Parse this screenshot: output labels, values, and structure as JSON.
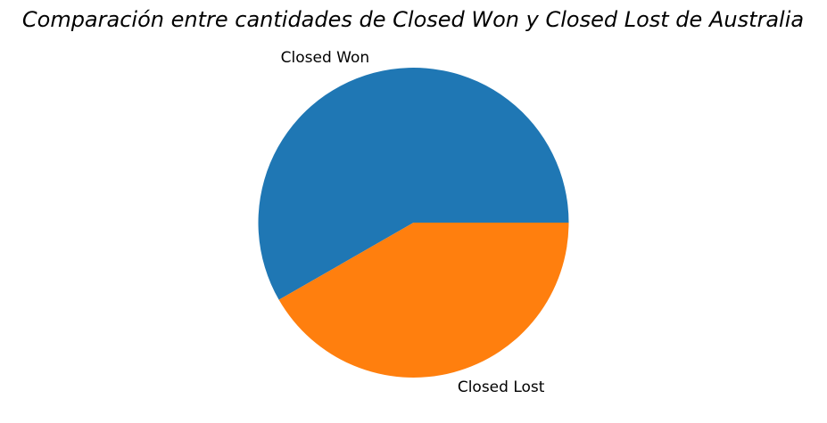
{
  "chart_data": {
    "type": "pie",
    "title": "Comparación entre cantidades de Closed Won y Closed Lost de Australia",
    "slices": [
      {
        "label": "Closed Won",
        "value": 58.3,
        "color": "#1f77b4"
      },
      {
        "label": "Closed Lost",
        "value": 41.7,
        "color": "#ff7f0e"
      }
    ],
    "start_angle_deg": 0,
    "direction": "counterclockwise",
    "legend": "none"
  }
}
